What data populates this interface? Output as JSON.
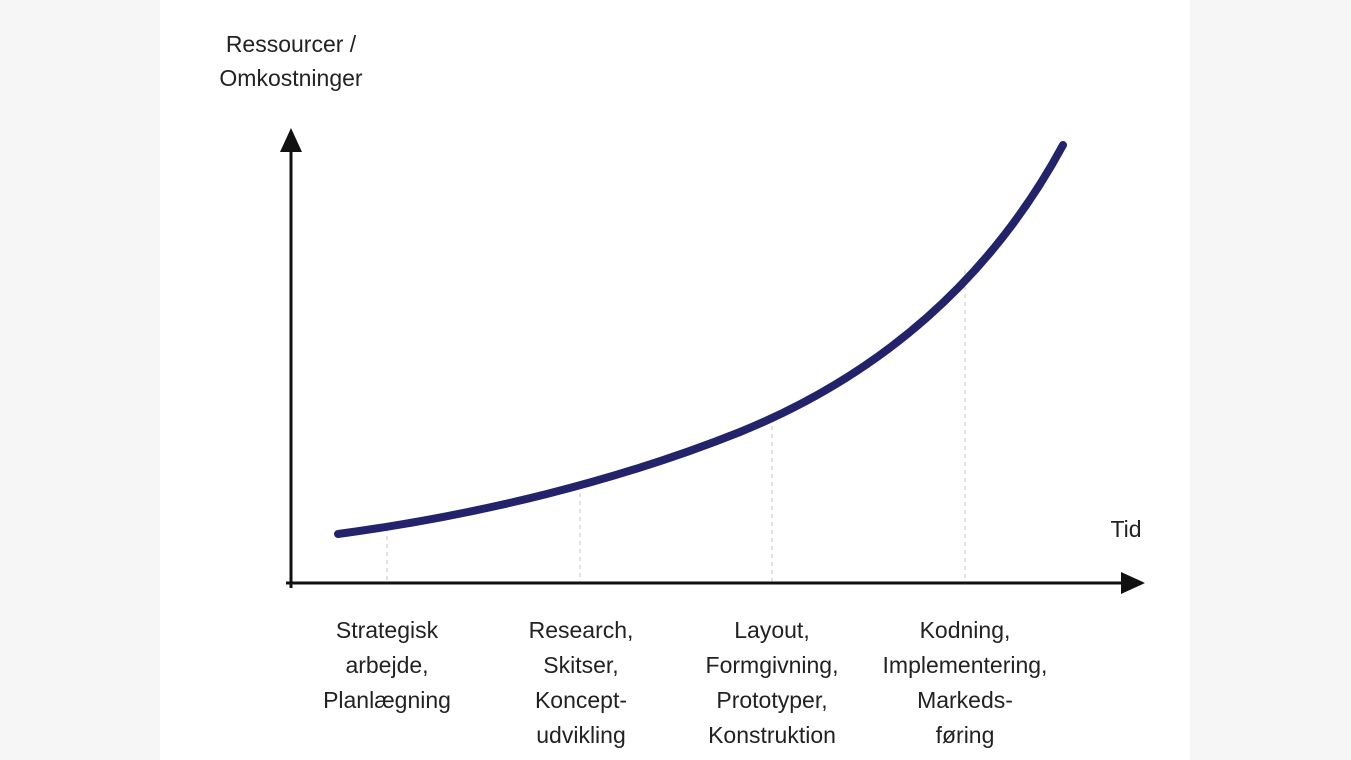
{
  "y_axis_label": [
    "Ressourcer /",
    "Omkostninger"
  ],
  "x_axis_label": "Tid",
  "phases": [
    [
      "Strategisk",
      "arbejde,",
      "Planlægning"
    ],
    [
      "Research,",
      "Skitser,",
      "Koncept-",
      "udvikling"
    ],
    [
      "Layout,",
      "Formgivning,",
      "Prototyper,",
      "Konstruktion"
    ],
    [
      "Kodning,",
      "Implementering,",
      "Markeds-",
      "føring"
    ]
  ]
}
